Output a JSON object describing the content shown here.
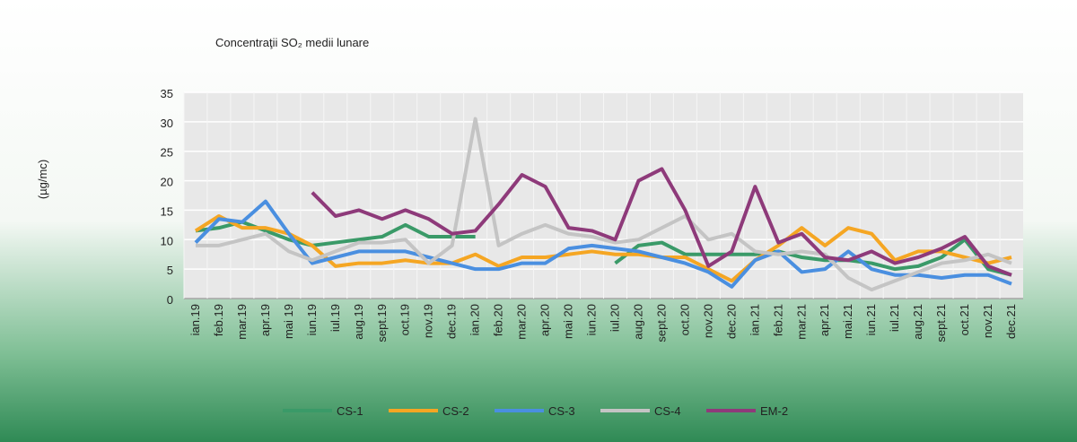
{
  "chart_data": {
    "type": "line",
    "title": "Concentraţii SO₂ medii lunare",
    "y_label": "(µg/mc)",
    "categories": [
      "ian.19",
      "feb.19",
      "mar.19",
      "apr.19",
      "mai 19",
      "iun.19",
      "iul.19",
      "aug.19",
      "sept.19",
      "oct.19",
      "nov.19",
      "dec.19",
      "ian.20",
      "feb.20",
      "mar.20",
      "apr.20",
      "mai 20",
      "iun.20",
      "iul.20",
      "aug.20",
      "sept.20",
      "oct.20",
      "nov.20",
      "dec.20",
      "ian.21",
      "feb.21",
      "mar.21",
      "apr.21",
      "mai.21",
      "iun.21",
      "iul.21",
      "aug.21",
      "sept.21",
      "oct.21",
      "nov.21",
      "dec.21"
    ],
    "series": [
      {
        "name": "CS-1",
        "color": "#3a9a68",
        "values": [
          11.5,
          12,
          13,
          11.5,
          10,
          9,
          9.5,
          10,
          10.5,
          12.5,
          10.5,
          10.5,
          10.5,
          null,
          null,
          null,
          null,
          null,
          6,
          9,
          9.5,
          7.5,
          7.5,
          7.5,
          7.5,
          8,
          7,
          6.5,
          6.5,
          6,
          5,
          5.5,
          7,
          10,
          5,
          4
        ]
      },
      {
        "name": "CS-2",
        "color": "#f5a623",
        "values": [
          11.5,
          14,
          12,
          12,
          11,
          9,
          5.5,
          6,
          6,
          6.5,
          6,
          6,
          7.5,
          5.5,
          7,
          7,
          7.5,
          8,
          7.5,
          7.5,
          7,
          7,
          5,
          3,
          6.5,
          9,
          12,
          9,
          12,
          11,
          6.5,
          8,
          8,
          7,
          6,
          7
        ]
      },
      {
        "name": "CS-3",
        "color": "#4a8fe0",
        "values": [
          9.5,
          13.5,
          13,
          16.5,
          11,
          6,
          7,
          8,
          8,
          8,
          7,
          6,
          5,
          5,
          6,
          6,
          8.5,
          9,
          8.5,
          8,
          7,
          6,
          4.5,
          2,
          6.5,
          8,
          4.5,
          5,
          8,
          5,
          4,
          4,
          3.5,
          4,
          4,
          2.5
        ]
      },
      {
        "name": "CS-4",
        "color": "#c4c4c4",
        "values": [
          9,
          9,
          10,
          11,
          8,
          6.5,
          8,
          9.5,
          9.5,
          10,
          6,
          9,
          30.5,
          9,
          11,
          12.5,
          11,
          10.5,
          9.5,
          10,
          12,
          14,
          10,
          11,
          8,
          7.5,
          8,
          7.5,
          3.5,
          1.5,
          3,
          4.5,
          6,
          6.5,
          7.5,
          6
        ]
      },
      {
        "name": "EM-2",
        "color": "#8e3a7a",
        "values": [
          null,
          null,
          null,
          null,
          null,
          18,
          14,
          15,
          13.5,
          15,
          13.5,
          11,
          11.5,
          16,
          21,
          19,
          12,
          11.5,
          10,
          20,
          22,
          15,
          5.5,
          8,
          19,
          9.5,
          11,
          7,
          6.5,
          8,
          6,
          7,
          8.5,
          10.5,
          5.5,
          4
        ]
      }
    ],
    "ylim": [
      0,
      35
    ],
    "yticks": [
      0,
      5,
      10,
      15,
      20,
      25,
      30,
      35
    ],
    "grid": true
  }
}
